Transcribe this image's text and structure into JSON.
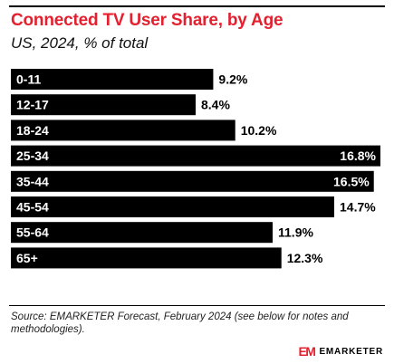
{
  "header": {
    "title": "Connected TV User Share, by Age",
    "subtitle": "US, 2024, % of total"
  },
  "chart_data": {
    "type": "bar",
    "orientation": "horizontal",
    "categories": [
      "0-11",
      "12-17",
      "18-24",
      "25-34",
      "35-44",
      "45-54",
      "55-64",
      "65+"
    ],
    "values": [
      9.2,
      8.4,
      10.2,
      16.8,
      16.5,
      14.7,
      11.9,
      12.3
    ],
    "value_labels": [
      "9.2%",
      "8.4%",
      "10.2%",
      "16.8%",
      "16.5%",
      "14.7%",
      "11.9%",
      "12.3%"
    ],
    "xlim": [
      0,
      16.8
    ],
    "grid": false,
    "legend": "none",
    "bar_color": "#000000",
    "label_color_inside": "#ffffff",
    "label_color_outside": "#000000"
  },
  "footer": {
    "source": "Source: EMARKETER Forecast, February 2024 (see below for notes and methodologies).",
    "brand_mark": "EM",
    "brand_name": "EMARKETER",
    "brand_color": "#e4202f"
  }
}
